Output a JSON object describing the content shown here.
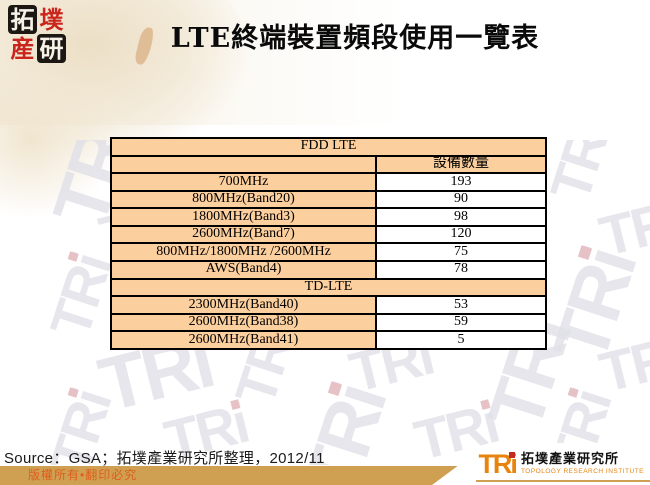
{
  "page": {
    "title": "LTE終端裝置頻段使用一覽表"
  },
  "header_logo": {
    "chars": [
      "拓",
      "墣",
      "産",
      "研"
    ]
  },
  "chart_data": {
    "type": "table",
    "title": "LTE終端裝置頻段使用一覽表",
    "sections": [
      {
        "name": "FDD LTE",
        "value_column": "設備數量",
        "rows": [
          [
            "700MHz",
            193
          ],
          [
            "800MHz(Band20)",
            90
          ],
          [
            "1800MHz(Band3)",
            98
          ],
          [
            "2600MHz(Band7)",
            120
          ],
          [
            "800MHz/1800MHz /2600MHz",
            75
          ],
          [
            "AWS(Band4)",
            78
          ]
        ]
      },
      {
        "name": "TD-LTE",
        "rows": [
          [
            "2300MHz(Band40)",
            53
          ],
          [
            "2600MHz(Band38)",
            59
          ],
          [
            "2600MHz(Band41)",
            5
          ]
        ]
      }
    ]
  },
  "footer": {
    "source": "Source：GSA；拓墣產業研究所整理，2012/11",
    "copyright": "版權所有•翻印必究"
  },
  "brand": {
    "tri": "TRi",
    "cjk": "拓墣產業研究所",
    "institute": "TOPOLOGY RESEARCH INSTITUTE"
  },
  "watermark": {
    "text": "TRi"
  },
  "colors": {
    "table_cell_peach": "#FCCF9E",
    "table_border": "#000000",
    "bar_tan": "#CF9F52",
    "copyright_orange": "#DE5F1D",
    "tri_orange": "#E8830E",
    "seal_red": "#C9251C",
    "watermark_gray": "#E0E0E8",
    "watermark_dot_pink": "#E0B2B7"
  }
}
